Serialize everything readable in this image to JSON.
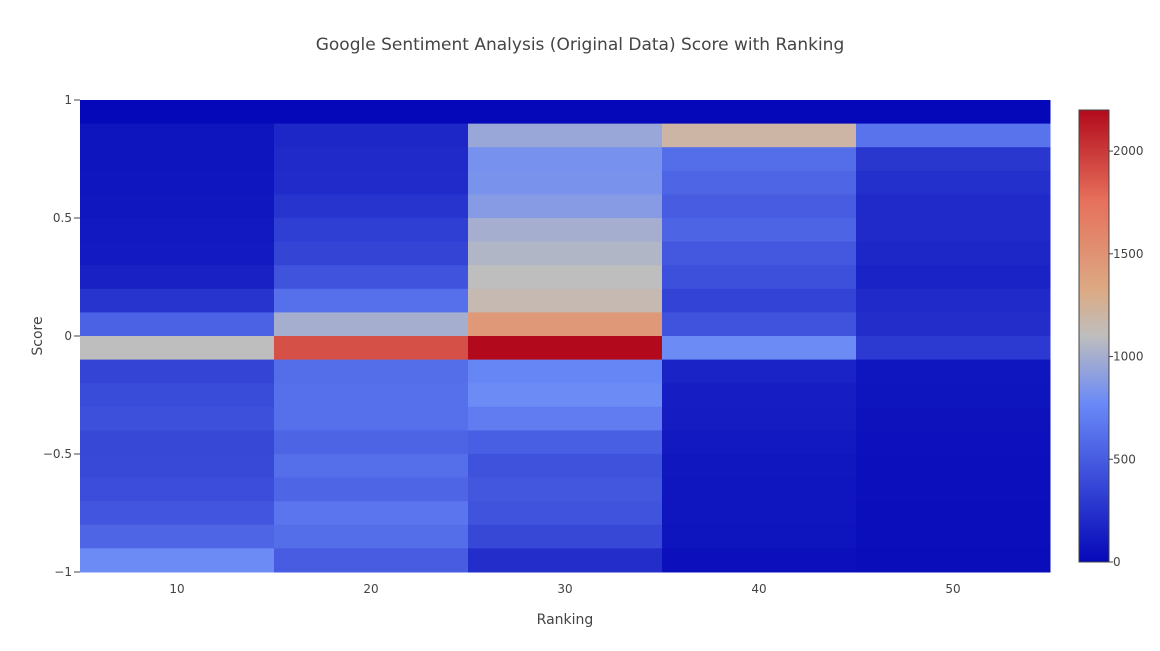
{
  "chart_data": {
    "type": "heatmap",
    "title": "Google Sentiment Analysis (Original Data) Score with Ranking",
    "xlabel": "Ranking",
    "ylabel": "Score",
    "x": [
      10,
      20,
      30,
      40,
      50
    ],
    "x_ticks": [
      "10",
      "20",
      "30",
      "40",
      "50"
    ],
    "ylim": [
      -1,
      1
    ],
    "y_ticks": [
      {
        "value": 1,
        "label": "1"
      },
      {
        "value": 0.5,
        "label": "0.5"
      },
      {
        "value": 0,
        "label": "0"
      },
      {
        "value": -0.5,
        "label": "−0.5"
      },
      {
        "value": -1,
        "label": "−1"
      }
    ],
    "y_bins": [
      0.95,
      0.85,
      0.75,
      0.65,
      0.55,
      0.45,
      0.35,
      0.25,
      0.15,
      0.05,
      -0.05,
      -0.15,
      -0.25,
      -0.35,
      -0.45,
      -0.55,
      -0.65,
      -0.75,
      -0.85,
      -0.95
    ],
    "z": [
      [
        0,
        0,
        0,
        0,
        0
      ],
      [
        70,
        180,
        950,
        1200,
        640
      ],
      [
        70,
        200,
        820,
        600,
        280
      ],
      [
        80,
        210,
        830,
        560,
        240
      ],
      [
        90,
        260,
        880,
        500,
        200
      ],
      [
        100,
        330,
        1000,
        550,
        200
      ],
      [
        110,
        360,
        1050,
        480,
        180
      ],
      [
        150,
        450,
        1100,
        430,
        160
      ],
      [
        260,
        620,
        1150,
        350,
        200
      ],
      [
        540,
        1000,
        1450,
        450,
        220
      ],
      [
        1100,
        1900,
        2200,
        780,
        300
      ],
      [
        360,
        600,
        750,
        160,
        80
      ],
      [
        400,
        620,
        780,
        130,
        70
      ],
      [
        430,
        620,
        690,
        120,
        60
      ],
      [
        380,
        550,
        520,
        100,
        55
      ],
      [
        390,
        610,
        440,
        90,
        50
      ],
      [
        410,
        560,
        470,
        85,
        45
      ],
      [
        460,
        650,
        450,
        80,
        40
      ],
      [
        560,
        600,
        380,
        75,
        35
      ],
      [
        780,
        500,
        220,
        50,
        30
      ]
    ],
    "colorscale": {
      "min": 0,
      "max": 2200,
      "ticks": [
        {
          "value": 0,
          "label": "0"
        },
        {
          "value": 500,
          "label": "500"
        },
        {
          "value": 1000,
          "label": "1000"
        },
        {
          "value": 1500,
          "label": "1500"
        },
        {
          "value": 2000,
          "label": "2000"
        }
      ],
      "stops": [
        {
          "t": 0.0,
          "color": "#0508b8"
        },
        {
          "t": 0.35,
          "color": "#6a89f7"
        },
        {
          "t": 0.5,
          "color": "#bebebe"
        },
        {
          "t": 0.6,
          "color": "#dcaa84"
        },
        {
          "t": 0.8,
          "color": "#e6705b"
        },
        {
          "t": 1.0,
          "color": "#b20a1c"
        }
      ]
    },
    "grid": false
  }
}
